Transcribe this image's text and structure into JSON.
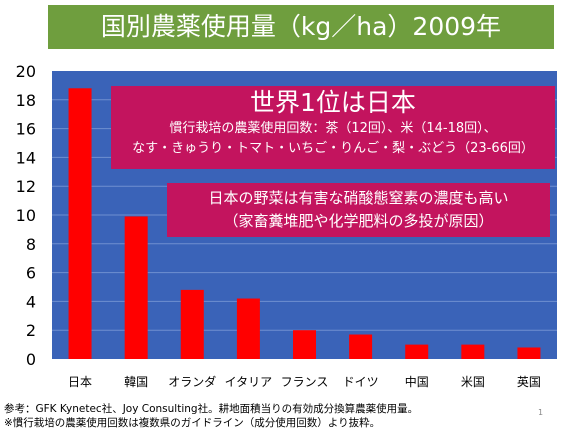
{
  "title": "国別農薬使用量（kg／ha）2009年",
  "chart_data": {
    "type": "bar",
    "categories": [
      "日本",
      "韓国",
      "オランダ",
      "イタリア",
      "フランス",
      "ドイツ",
      "中国",
      "米国",
      "英国"
    ],
    "values": [
      18.8,
      9.9,
      4.8,
      4.2,
      2.0,
      1.7,
      1.0,
      1.0,
      0.8
    ],
    "ylim": [
      0,
      20
    ],
    "yticks": [
      "0",
      "2",
      "4",
      "6",
      "8",
      "10",
      "12",
      "14",
      "16",
      "18",
      "20"
    ],
    "grid": true,
    "plot_background": "#3a63b8",
    "bar_color": "#ff0000",
    "legend": false
  },
  "callout_main": {
    "heading": "世界1位は日本",
    "line1": "慣行栽培の農薬使用回数：茶（12回）、米（14-18回）、",
    "line2": "なす・きゅうり・トマト・いちご・りんご・梨・ぶどう（23-66回）",
    "color": "#c3145e"
  },
  "callout_sub": {
    "line1": "日本の野菜は有害な硝酸態窒素の濃度も高い",
    "line2": "（家畜糞堆肥や化学肥料の多投が原因）",
    "color": "#c3145e"
  },
  "footnotes": {
    "line1": "参考：GFK Kynetec社、Joy Consulting社。耕地面積当りの有効成分換算農薬使用量。",
    "line2": "※慣行栽培の農薬使用回数は複数県のガイドライン（成分使用回数）より抜粋。"
  },
  "page_number": "1",
  "colors": {
    "title_bar": "#6f9e3e"
  }
}
